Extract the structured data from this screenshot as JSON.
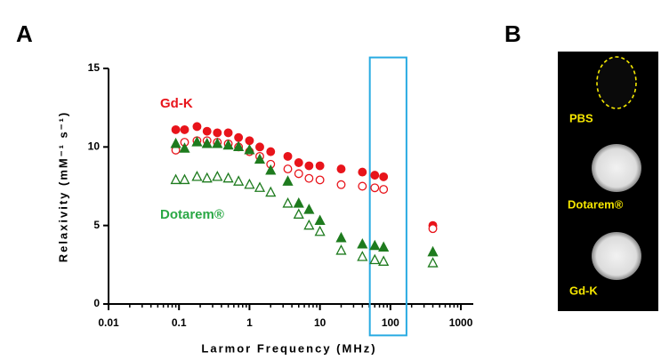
{
  "panel_labels": [
    "A",
    "B"
  ],
  "chart_data": {
    "type": "scatter",
    "xlabel": "Larmor Frequency (MHz)",
    "ylabel": "Relaxivity (mM⁻¹ s⁻¹)",
    "xscale": "log",
    "xlim": [
      0.01,
      1500
    ],
    "ylim": [
      0,
      15
    ],
    "xticks": [
      0.01,
      0.1,
      1,
      10,
      100,
      1000
    ],
    "yticks": [
      0,
      5,
      10,
      15
    ],
    "x": [
      0.09,
      0.12,
      0.18,
      0.25,
      0.35,
      0.5,
      0.7,
      1,
      1.4,
      2,
      3.5,
      5,
      7,
      10,
      20,
      40,
      60,
      80,
      400
    ],
    "series": [
      {
        "color": "#e8141b",
        "marker": "circle",
        "filled": true,
        "values": [
          11.1,
          11.1,
          11.3,
          11.0,
          10.9,
          10.9,
          10.6,
          10.4,
          10.0,
          9.7,
          9.4,
          9.0,
          8.8,
          8.8,
          8.6,
          8.4,
          8.2,
          8.1,
          5.0
        ]
      },
      {
        "color": "#e8141b",
        "marker": "circle",
        "filled": false,
        "values": [
          9.8,
          10.3,
          10.4,
          10.4,
          10.3,
          10.2,
          10.0,
          9.7,
          9.4,
          8.9,
          8.6,
          8.3,
          8.0,
          7.9,
          7.6,
          7.5,
          7.4,
          7.3,
          4.8
        ]
      },
      {
        "color": "#1e7b1e",
        "marker": "triangle",
        "filled": true,
        "values": [
          10.2,
          9.9,
          10.3,
          10.2,
          10.2,
          10.1,
          10.0,
          9.8,
          9.2,
          8.5,
          7.8,
          6.4,
          6.0,
          5.3,
          4.2,
          3.8,
          3.7,
          3.6,
          3.3
        ]
      },
      {
        "color": "#1e7b1e",
        "marker": "triangle",
        "filled": false,
        "values": [
          7.9,
          7.9,
          8.1,
          8.0,
          8.1,
          8.0,
          7.8,
          7.6,
          7.4,
          7.1,
          6.4,
          5.7,
          5.0,
          4.6,
          3.4,
          3.0,
          2.8,
          2.7,
          2.6
        ]
      }
    ],
    "labels": [
      {
        "text": "Gd-K",
        "color": "#e8141b"
      },
      {
        "text": "Dotarem®",
        "color": "#2aa845"
      }
    ],
    "highlight": {
      "x": [
        51,
        169
      ],
      "y": [
        -2,
        15.7
      ],
      "color": "#29abe2"
    }
  },
  "image": {
    "labels": [
      "PBS",
      "Dotarem®",
      "Gd-K"
    ]
  }
}
